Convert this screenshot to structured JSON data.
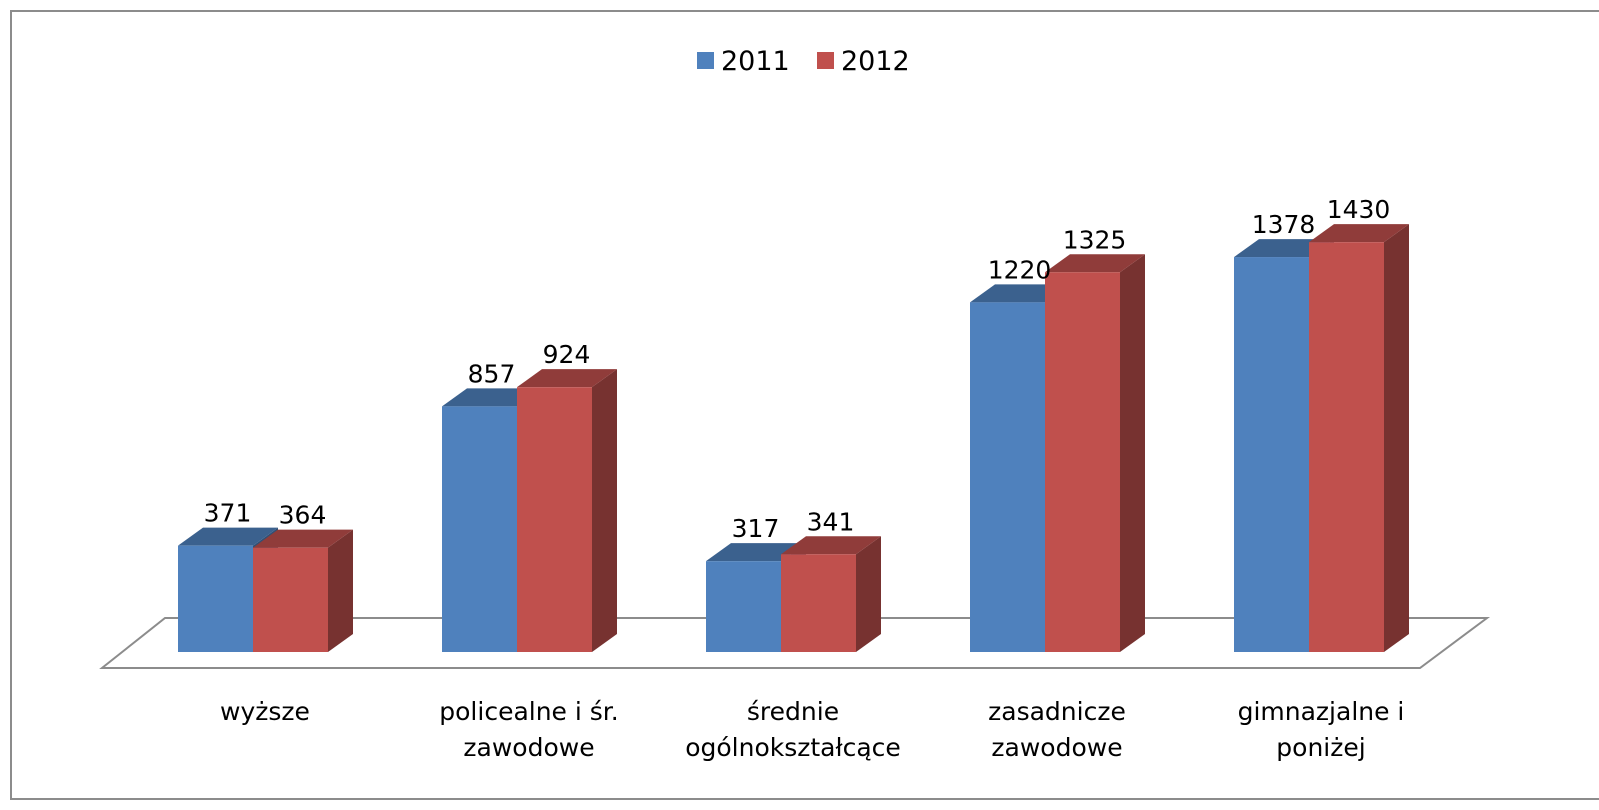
{
  "chart_data": {
    "type": "bar",
    "categories": [
      [
        "wyższe"
      ],
      [
        "policealne i śr.",
        "zawodowe"
      ],
      [
        "średnie",
        "ogólnokształcące"
      ],
      [
        "zasadnicze",
        "zawodowe"
      ],
      [
        "gimnazjalne i",
        "poniżej"
      ]
    ],
    "series": [
      {
        "name": "2011",
        "values": [
          371,
          857,
          317,
          1220,
          1378
        ],
        "color": "#4f81bd"
      },
      {
        "name": "2012",
        "values": [
          364,
          924,
          341,
          1325,
          1430
        ],
        "color": "#c0504d"
      }
    ],
    "title": "",
    "xlabel": "",
    "ylabel": "",
    "legend": "top-center",
    "grid": false,
    "style": "3d-clustered-column"
  }
}
